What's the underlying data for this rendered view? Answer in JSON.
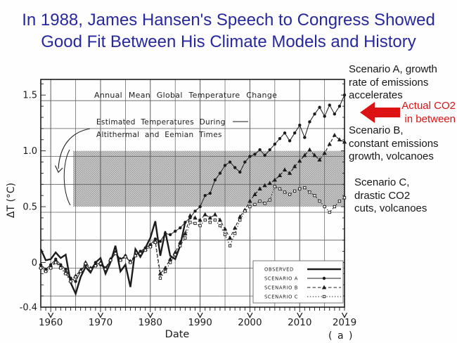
{
  "title": {
    "line1": "In 1988, James Hansen's Speech to Congress Showed",
    "line2": "Good Fit Between His Climate Models and History"
  },
  "annotations": {
    "scenario_a": "Scenario A, growth\nrate of emissions\naccelerates",
    "actual_co2": "Actual CO2\nin between",
    "scenario_b": "Scenario B,\nconstant emissions\ngrowth, volcanoes",
    "scenario_c": "Scenario C,\ndrastic CO2\ncuts, volcanoes"
  },
  "colors": {
    "title_blue": "#28289e",
    "arrow_red": "#dd1212",
    "chart_ink": "#1c1c1c",
    "band_base": "#cccccc",
    "band_dot": "#8d8d8d"
  },
  "chart_data": {
    "type": "line",
    "title": "Annual Mean Global Temperature Change",
    "band_label_line1": "Estimated Temperatures During",
    "band_label_line2": "Altithermal and Eemian Times",
    "ylabel": "ΔT (°C)",
    "xlabel": "Date",
    "corner_label": "( a )",
    "xlim": [
      1958,
      2019
    ],
    "ylim": [
      -0.4,
      1.64
    ],
    "x_ticks": [
      1960,
      1970,
      1980,
      1990,
      2000,
      2010,
      2019
    ],
    "y_ticks": [
      {
        "v": 1.5,
        "label": "1.5"
      },
      {
        "v": 1.0,
        "label": "1.0"
      },
      {
        "v": 0.5,
        "label": "0.5"
      },
      {
        "v": 0.0,
        "label": "0"
      },
      {
        "v": -0.4,
        "label": "-0.4"
      }
    ],
    "y_gridlines": [
      -0.3,
      -0.05,
      0.2,
      0.45,
      0.7,
      0.95,
      1.2,
      1.45
    ],
    "x_grid_step_years": 5,
    "grid": true,
    "legend_position": "bottom-right",
    "shaded_band": {
      "y_from": 0.5,
      "y_to": 1.0,
      "x_from": 1964.5,
      "x_to": 2019
    },
    "legend": [
      {
        "label": "OBSERVED",
        "style": "solid-thick"
      },
      {
        "label": "SCENARIO A",
        "style": "solid-dot"
      },
      {
        "label": "SCENARIO B",
        "style": "dash-triangle"
      },
      {
        "label": "SCENARIO C",
        "style": "dot-square"
      }
    ],
    "series": [
      {
        "name": "Observed",
        "style": "solid-thick",
        "x_start": 1958,
        "values": [
          0.12,
          0.02,
          0.03,
          0.09,
          0.04,
          0.07,
          -0.18,
          -0.28,
          -0.13,
          -0.04,
          -0.09,
          0.0,
          0.04,
          -0.1,
          0.0,
          0.15,
          -0.08,
          -0.02,
          -0.22,
          0.12,
          0.05,
          0.13,
          0.22,
          0.37,
          0.06,
          0.28,
          0.06,
          0.03,
          0.15,
          0.36
        ]
      },
      {
        "name": "Scenario A",
        "style": "solid-dot",
        "x_start": 1958,
        "values": [
          -0.02,
          -0.06,
          -0.02,
          0.03,
          -0.02,
          -0.06,
          -0.14,
          -0.17,
          -0.08,
          -0.02,
          -0.06,
          0.0,
          -0.02,
          -0.06,
          0.02,
          0.08,
          0.02,
          0.06,
          0.0,
          0.06,
          0.1,
          0.13,
          0.16,
          0.21,
          0.19,
          0.26,
          0.25,
          0.28,
          0.31,
          0.36,
          0.4,
          0.46,
          0.5,
          0.6,
          0.62,
          0.74,
          0.8,
          0.87,
          0.9,
          0.85,
          0.81,
          0.9,
          0.95,
          0.97,
          1.01,
          0.96,
          1.01,
          1.06,
          1.11,
          1.16,
          1.09,
          1.16,
          1.23,
          1.12,
          1.26,
          1.33,
          1.39,
          1.31,
          1.41,
          1.33,
          1.4,
          1.5
        ]
      },
      {
        "name": "Scenario B",
        "style": "dash-triangle",
        "x_start": 1958,
        "values": [
          -0.04,
          -0.07,
          -0.04,
          0.01,
          -0.04,
          -0.09,
          -0.16,
          -0.12,
          -0.07,
          0.0,
          -0.05,
          -0.02,
          0.0,
          -0.05,
          0.03,
          0.09,
          0.03,
          0.06,
          0.01,
          0.07,
          0.09,
          0.12,
          0.15,
          0.19,
          -0.1,
          -0.05,
          0.03,
          0.09,
          0.18,
          0.26,
          0.42,
          0.4,
          0.38,
          0.43,
          0.4,
          0.43,
          0.38,
          0.3,
          0.22,
          0.31,
          0.41,
          0.47,
          0.55,
          0.61,
          0.66,
          0.69,
          0.71,
          0.74,
          0.78,
          0.83,
          0.8,
          0.86,
          0.91,
          0.96,
          1.01,
          0.96,
          0.92,
          0.98,
          1.06,
          1.14,
          1.1,
          1.08
        ]
      },
      {
        "name": "Scenario C",
        "style": "dot-square",
        "x_start": 1958,
        "values": [
          -0.05,
          -0.08,
          -0.05,
          0.0,
          -0.05,
          -0.1,
          -0.17,
          -0.13,
          -0.08,
          -0.01,
          -0.06,
          -0.03,
          -0.01,
          -0.06,
          0.02,
          0.08,
          0.02,
          0.05,
          0.0,
          0.06,
          0.08,
          0.11,
          0.14,
          0.18,
          -0.14,
          -0.08,
          0.0,
          0.07,
          0.15,
          0.22,
          0.36,
          0.35,
          0.33,
          0.38,
          0.36,
          0.38,
          0.33,
          0.25,
          0.15,
          0.26,
          0.38,
          0.46,
          0.5,
          0.52,
          0.55,
          0.53,
          0.56,
          0.68,
          0.66,
          0.63,
          0.61,
          0.64,
          0.66,
          0.67,
          0.63,
          0.6,
          0.55,
          0.5,
          0.45,
          0.5,
          0.55,
          0.58
        ]
      }
    ]
  }
}
